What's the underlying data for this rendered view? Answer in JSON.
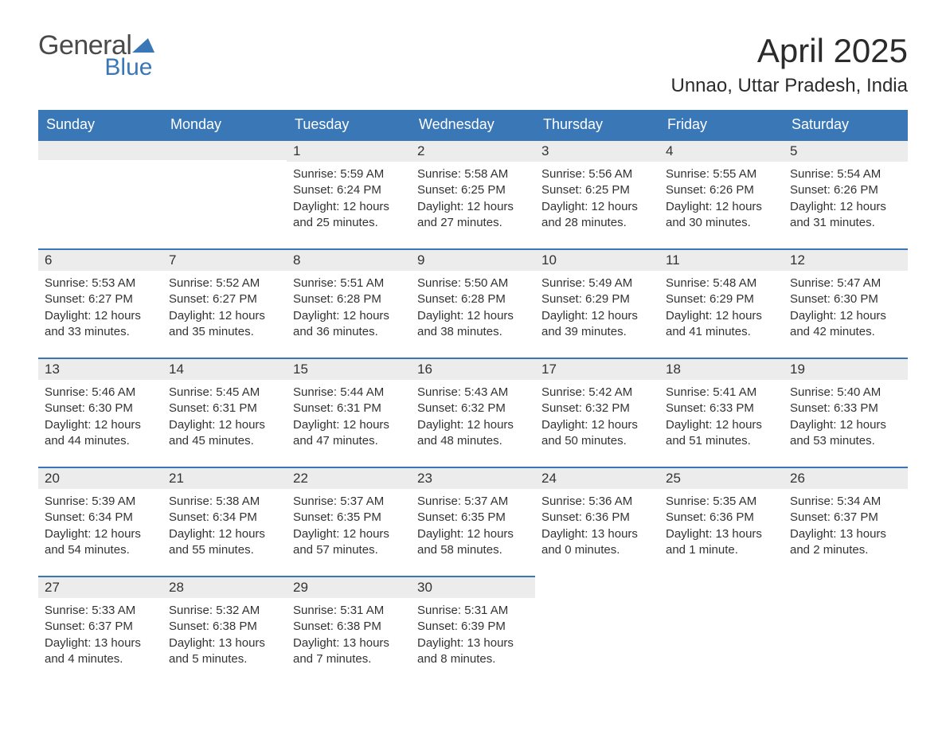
{
  "logo": {
    "word1": "General",
    "word2": "Blue"
  },
  "title": "April 2025",
  "location": "Unnao, Uttar Pradesh, India",
  "colors": {
    "brand_blue": "#3a77b6",
    "header_bg": "#3a77b6",
    "header_text": "#ffffff",
    "daynum_bg": "#ececec",
    "text": "#333333",
    "page_bg": "#ffffff"
  },
  "typography": {
    "title_fontsize": 42,
    "location_fontsize": 24,
    "dow_fontsize": 18,
    "body_fontsize": 15
  },
  "days_of_week": [
    "Sunday",
    "Monday",
    "Tuesday",
    "Wednesday",
    "Thursday",
    "Friday",
    "Saturday"
  ],
  "labels": {
    "sunrise": "Sunrise: ",
    "sunset": "Sunset: ",
    "daylight": "Daylight: "
  },
  "weeks": [
    [
      {
        "num": "",
        "sunrise": "",
        "sunset": "",
        "daylight": ""
      },
      {
        "num": "",
        "sunrise": "",
        "sunset": "",
        "daylight": ""
      },
      {
        "num": "1",
        "sunrise": "5:59 AM",
        "sunset": "6:24 PM",
        "daylight": "12 hours and 25 minutes."
      },
      {
        "num": "2",
        "sunrise": "5:58 AM",
        "sunset": "6:25 PM",
        "daylight": "12 hours and 27 minutes."
      },
      {
        "num": "3",
        "sunrise": "5:56 AM",
        "sunset": "6:25 PM",
        "daylight": "12 hours and 28 minutes."
      },
      {
        "num": "4",
        "sunrise": "5:55 AM",
        "sunset": "6:26 PM",
        "daylight": "12 hours and 30 minutes."
      },
      {
        "num": "5",
        "sunrise": "5:54 AM",
        "sunset": "6:26 PM",
        "daylight": "12 hours and 31 minutes."
      }
    ],
    [
      {
        "num": "6",
        "sunrise": "5:53 AM",
        "sunset": "6:27 PM",
        "daylight": "12 hours and 33 minutes."
      },
      {
        "num": "7",
        "sunrise": "5:52 AM",
        "sunset": "6:27 PM",
        "daylight": "12 hours and 35 minutes."
      },
      {
        "num": "8",
        "sunrise": "5:51 AM",
        "sunset": "6:28 PM",
        "daylight": "12 hours and 36 minutes."
      },
      {
        "num": "9",
        "sunrise": "5:50 AM",
        "sunset": "6:28 PM",
        "daylight": "12 hours and 38 minutes."
      },
      {
        "num": "10",
        "sunrise": "5:49 AM",
        "sunset": "6:29 PM",
        "daylight": "12 hours and 39 minutes."
      },
      {
        "num": "11",
        "sunrise": "5:48 AM",
        "sunset": "6:29 PM",
        "daylight": "12 hours and 41 minutes."
      },
      {
        "num": "12",
        "sunrise": "5:47 AM",
        "sunset": "6:30 PM",
        "daylight": "12 hours and 42 minutes."
      }
    ],
    [
      {
        "num": "13",
        "sunrise": "5:46 AM",
        "sunset": "6:30 PM",
        "daylight": "12 hours and 44 minutes."
      },
      {
        "num": "14",
        "sunrise": "5:45 AM",
        "sunset": "6:31 PM",
        "daylight": "12 hours and 45 minutes."
      },
      {
        "num": "15",
        "sunrise": "5:44 AM",
        "sunset": "6:31 PM",
        "daylight": "12 hours and 47 minutes."
      },
      {
        "num": "16",
        "sunrise": "5:43 AM",
        "sunset": "6:32 PM",
        "daylight": "12 hours and 48 minutes."
      },
      {
        "num": "17",
        "sunrise": "5:42 AM",
        "sunset": "6:32 PM",
        "daylight": "12 hours and 50 minutes."
      },
      {
        "num": "18",
        "sunrise": "5:41 AM",
        "sunset": "6:33 PM",
        "daylight": "12 hours and 51 minutes."
      },
      {
        "num": "19",
        "sunrise": "5:40 AM",
        "sunset": "6:33 PM",
        "daylight": "12 hours and 53 minutes."
      }
    ],
    [
      {
        "num": "20",
        "sunrise": "5:39 AM",
        "sunset": "6:34 PM",
        "daylight": "12 hours and 54 minutes."
      },
      {
        "num": "21",
        "sunrise": "5:38 AM",
        "sunset": "6:34 PM",
        "daylight": "12 hours and 55 minutes."
      },
      {
        "num": "22",
        "sunrise": "5:37 AM",
        "sunset": "6:35 PM",
        "daylight": "12 hours and 57 minutes."
      },
      {
        "num": "23",
        "sunrise": "5:37 AM",
        "sunset": "6:35 PM",
        "daylight": "12 hours and 58 minutes."
      },
      {
        "num": "24",
        "sunrise": "5:36 AM",
        "sunset": "6:36 PM",
        "daylight": "13 hours and 0 minutes."
      },
      {
        "num": "25",
        "sunrise": "5:35 AM",
        "sunset": "6:36 PM",
        "daylight": "13 hours and 1 minute."
      },
      {
        "num": "26",
        "sunrise": "5:34 AM",
        "sunset": "6:37 PM",
        "daylight": "13 hours and 2 minutes."
      }
    ],
    [
      {
        "num": "27",
        "sunrise": "5:33 AM",
        "sunset": "6:37 PM",
        "daylight": "13 hours and 4 minutes."
      },
      {
        "num": "28",
        "sunrise": "5:32 AM",
        "sunset": "6:38 PM",
        "daylight": "13 hours and 5 minutes."
      },
      {
        "num": "29",
        "sunrise": "5:31 AM",
        "sunset": "6:38 PM",
        "daylight": "13 hours and 7 minutes."
      },
      {
        "num": "30",
        "sunrise": "5:31 AM",
        "sunset": "6:39 PM",
        "daylight": "13 hours and 8 minutes."
      },
      {
        "num": "",
        "sunrise": "",
        "sunset": "",
        "daylight": ""
      },
      {
        "num": "",
        "sunrise": "",
        "sunset": "",
        "daylight": ""
      },
      {
        "num": "",
        "sunrise": "",
        "sunset": "",
        "daylight": ""
      }
    ]
  ]
}
